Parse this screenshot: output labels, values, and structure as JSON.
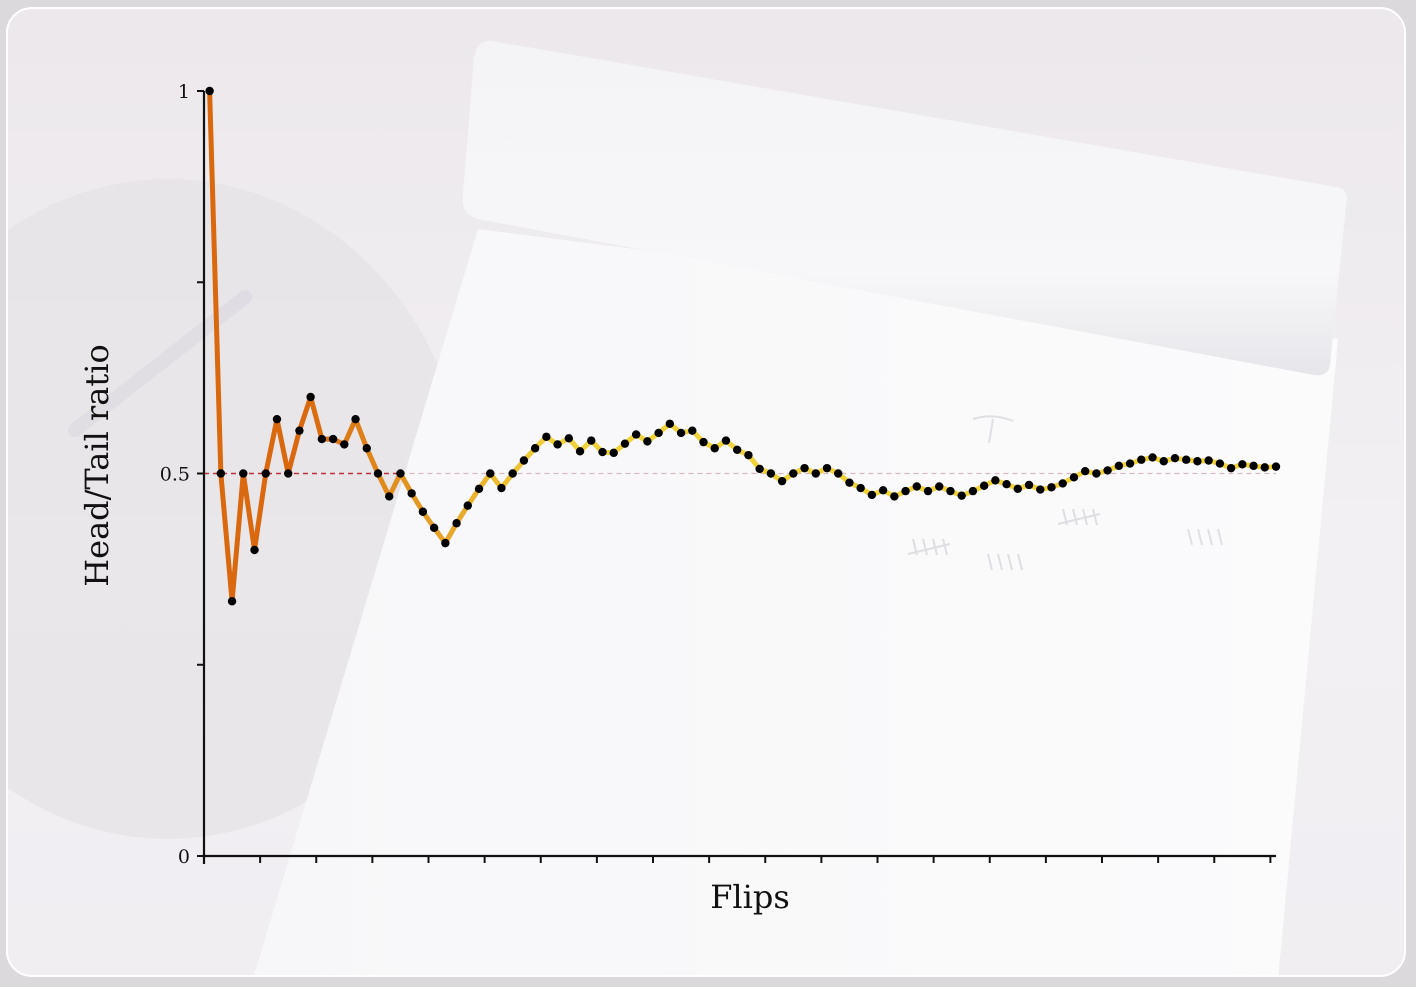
{
  "chart_data": {
    "type": "line",
    "title": "",
    "xlabel": "Flips",
    "ylabel": "Head/Tail ratio",
    "ylim": [
      0,
      1
    ],
    "xlim": [
      0.5,
      96
    ],
    "y_ticks": [
      0,
      0.25,
      0.5,
      0.75,
      1
    ],
    "y_tick_labels": [
      "0",
      "",
      "0.5",
      "",
      "1"
    ],
    "x_ticks": [
      0.5,
      5.5,
      10.5,
      15.5,
      20.5,
      25.5,
      30.5,
      35.5,
      40.5,
      45.5,
      50.5,
      55.5,
      60.5,
      65.5,
      70.5,
      75.5,
      80.5,
      85.5,
      90.5,
      95.5
    ],
    "reference_line": {
      "y": 0.5,
      "style": "dashed"
    },
    "series": [
      {
        "x": [
          1,
          2,
          3,
          4,
          5,
          6,
          7,
          8,
          9,
          10,
          11,
          12,
          13,
          14,
          15,
          16,
          17,
          18,
          19,
          20,
          21,
          22,
          23,
          24,
          25,
          26,
          27,
          28,
          29,
          30,
          31,
          32,
          33,
          34,
          35,
          36,
          37,
          38,
          39,
          40,
          41,
          42,
          43,
          44,
          45,
          46,
          47,
          48,
          49,
          50,
          51,
          52,
          53,
          54,
          55,
          56,
          57,
          58,
          59,
          60,
          61,
          62,
          63,
          64,
          65,
          66,
          67,
          68,
          69,
          70,
          71,
          72,
          73,
          74,
          75,
          76,
          77,
          78,
          79,
          80,
          81,
          82,
          83,
          84,
          85,
          86,
          87,
          88,
          89,
          90,
          91,
          92,
          93,
          94,
          95,
          96
        ],
        "values": [
          1.0,
          0.5,
          0.333,
          0.5,
          0.4,
          0.5,
          0.571,
          0.5,
          0.556,
          0.6,
          0.545,
          0.545,
          0.538,
          0.571,
          0.533,
          0.5,
          0.47,
          0.5,
          0.474,
          0.45,
          0.429,
          0.409,
          0.435,
          0.458,
          0.48,
          0.5,
          0.481,
          0.5,
          0.517,
          0.533,
          0.548,
          0.538,
          0.546,
          0.529,
          0.543,
          0.528,
          0.527,
          0.539,
          0.551,
          0.542,
          0.553,
          0.565,
          0.553,
          0.556,
          0.541,
          0.533,
          0.543,
          0.531,
          0.524,
          0.506,
          0.5,
          0.49,
          0.5,
          0.507,
          0.5,
          0.507,
          0.5,
          0.488,
          0.481,
          0.472,
          0.478,
          0.47,
          0.477,
          0.483,
          0.477,
          0.483,
          0.477,
          0.471,
          0.477,
          0.484,
          0.491,
          0.486,
          0.48,
          0.485,
          0.479,
          0.482,
          0.487,
          0.495,
          0.503,
          0.5,
          0.504,
          0.51,
          0.513,
          0.518,
          0.521,
          0.516,
          0.52,
          0.518,
          0.516,
          0.517,
          0.513,
          0.507,
          0.512,
          0.51,
          0.508,
          0.509
        ]
      }
    ],
    "colors": {
      "early": "#d9680f",
      "late": "#f0d33a",
      "points": "#000000",
      "reference": "#c0303a",
      "axis": "#111111"
    }
  }
}
